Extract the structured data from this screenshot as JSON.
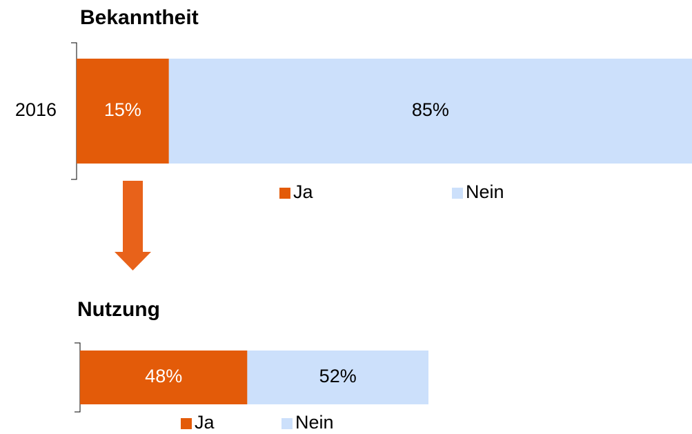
{
  "chart_data": [
    {
      "type": "bar",
      "orientation": "horizontal",
      "stacked": true,
      "title": "Bekanntheit",
      "categories": [
        "2016"
      ],
      "series": [
        {
          "name": "Ja",
          "color": "#e35b09",
          "values": [
            15
          ],
          "value_labels": [
            "15%"
          ]
        },
        {
          "name": "Nein",
          "color": "#cce0fb",
          "values": [
            85
          ],
          "value_labels": [
            "85%"
          ]
        }
      ],
      "xlim": [
        0,
        100
      ],
      "legend": "bottom"
    },
    {
      "type": "bar",
      "orientation": "horizontal",
      "stacked": true,
      "title": "Nutzung",
      "categories": [
        null
      ],
      "series": [
        {
          "name": "Ja",
          "color": "#e35b09",
          "values": [
            48
          ],
          "value_labels": [
            "48%"
          ]
        },
        {
          "name": "Nein",
          "color": "#cce0fb",
          "values": [
            52
          ],
          "value_labels": [
            "52%"
          ]
        }
      ],
      "xlim": [
        0,
        100
      ],
      "legend": "bottom"
    }
  ]
}
